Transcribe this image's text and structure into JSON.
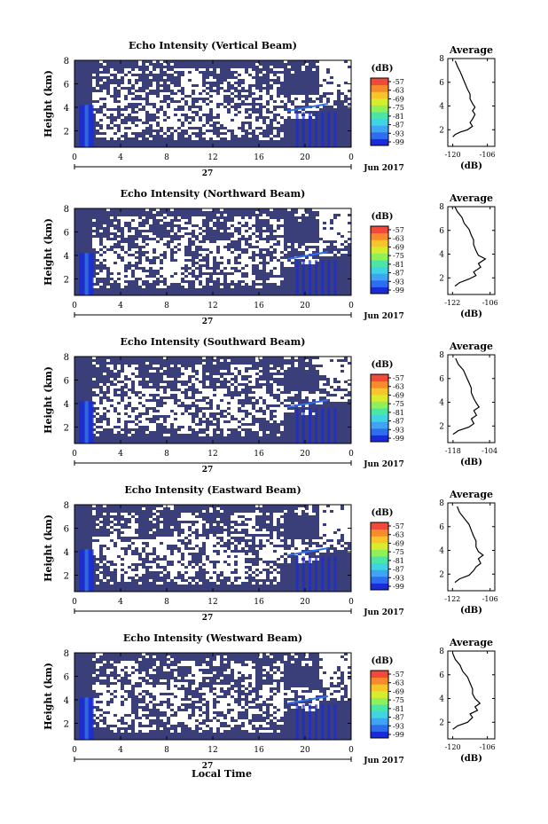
{
  "figure": {
    "xlabel_bottom": "Local Time",
    "colors": {
      "background": "#3a3f7a",
      "echo_gap": "#ffffff",
      "frame": "#000000",
      "colormap": [
        "#1a2bd9",
        "#2f6df0",
        "#3fa4f4",
        "#3fd4e2",
        "#4be6a5",
        "#8ff05a",
        "#d8ec2e",
        "#f7c52a",
        "#f78a2a",
        "#f04a3a"
      ]
    }
  },
  "chart_data": [
    {
      "type": "heatmap",
      "title": "Echo Intensity (Vertical Beam)",
      "ylabel": "Height (km)",
      "yticks": [
        "2",
        "4",
        "6",
        "8"
      ],
      "ylim": [
        0.6,
        8
      ],
      "xticks": [
        "0",
        "4",
        "8",
        "12",
        "16",
        "20",
        "0"
      ],
      "xlim": [
        0,
        24
      ],
      "date_label": "27",
      "month_label": "Jun 2017",
      "colorbar": {
        "unit": "(dB)",
        "ticks": [
          "-57",
          "-63",
          "-69",
          "-75",
          "-81",
          "-87",
          "-93",
          "-99"
        ]
      },
      "profile": {
        "title": "Average",
        "xlabel": "(dB)",
        "xticks": [
          "-120",
          "-106"
        ],
        "xlim": [
          -122,
          -103
        ],
        "yticks": [
          "2",
          "4",
          "6",
          "8"
        ],
        "ylim": [
          0.6,
          8
        ],
        "points": [
          [
            -120,
            1.4
          ],
          [
            -119,
            1.6
          ],
          [
            -117,
            1.8
          ],
          [
            -114,
            2.0
          ],
          [
            -112,
            2.3
          ],
          [
            -113,
            2.6
          ],
          [
            -112,
            2.9
          ],
          [
            -111,
            3.3
          ],
          [
            -112,
            3.6
          ],
          [
            -111,
            3.9
          ],
          [
            -112,
            4.2
          ],
          [
            -113,
            4.6
          ],
          [
            -113,
            5.0
          ],
          [
            -114,
            5.4
          ],
          [
            -115,
            5.9
          ],
          [
            -116,
            6.4
          ],
          [
            -117,
            6.9
          ],
          [
            -118,
            7.3
          ],
          [
            -119,
            7.8
          ]
        ]
      }
    },
    {
      "type": "heatmap",
      "title": "Echo Intensity (Northward Beam)",
      "ylabel": "Height (km)",
      "yticks": [
        "2",
        "4",
        "6",
        "8"
      ],
      "ylim": [
        0.6,
        8
      ],
      "xticks": [
        "0",
        "4",
        "8",
        "12",
        "16",
        "20",
        "0"
      ],
      "xlim": [
        0,
        24
      ],
      "date_label": "27",
      "month_label": "Jun 2017",
      "colorbar": {
        "unit": "(dB)",
        "ticks": [
          "-57",
          "-63",
          "-69",
          "-75",
          "-81",
          "-87",
          "-93",
          "-99"
        ]
      },
      "profile": {
        "title": "Average",
        "xlabel": "(dB)",
        "xticks": [
          "-122",
          "-106"
        ],
        "xlim": [
          -124,
          -104
        ],
        "yticks": [
          "2",
          "4",
          "6",
          "8"
        ],
        "ylim": [
          0.6,
          8
        ],
        "points": [
          [
            -121,
            1.3
          ],
          [
            -119,
            1.6
          ],
          [
            -115,
            1.9
          ],
          [
            -112,
            2.2
          ],
          [
            -113,
            2.5
          ],
          [
            -110,
            2.9
          ],
          [
            -111,
            3.2
          ],
          [
            -108,
            3.6
          ],
          [
            -111,
            3.9
          ],
          [
            -112,
            4.3
          ],
          [
            -113,
            4.8
          ],
          [
            -113,
            5.2
          ],
          [
            -114,
            5.6
          ],
          [
            -115,
            6.1
          ],
          [
            -117,
            6.6
          ],
          [
            -118,
            7.1
          ],
          [
            -120,
            7.6
          ],
          [
            -121,
            8.0
          ]
        ]
      }
    },
    {
      "type": "heatmap",
      "title": "Echo Intensity (Southward Beam)",
      "ylabel": "Height (km)",
      "yticks": [
        "2",
        "4",
        "6",
        "8"
      ],
      "ylim": [
        0.6,
        8
      ],
      "xticks": [
        "0",
        "4",
        "8",
        "12",
        "16",
        "20",
        "0"
      ],
      "xlim": [
        0,
        24
      ],
      "date_label": "27",
      "month_label": "Jun 2017",
      "colorbar": {
        "unit": "(dB)",
        "ticks": [
          "-57",
          "-63",
          "-69",
          "-75",
          "-81",
          "-87",
          "-93",
          "-99"
        ]
      },
      "profile": {
        "title": "Average",
        "xlabel": "(dB)",
        "xticks": [
          "-118",
          "-104"
        ],
        "xlim": [
          -120,
          -102
        ],
        "yticks": [
          "2",
          "4",
          "6",
          "8"
        ],
        "ylim": [
          0.6,
          8
        ],
        "points": [
          [
            -118,
            1.3
          ],
          [
            -116,
            1.6
          ],
          [
            -112,
            1.9
          ],
          [
            -110,
            2.2
          ],
          [
            -111,
            2.6
          ],
          [
            -109,
            2.9
          ],
          [
            -110,
            3.3
          ],
          [
            -108,
            3.6
          ],
          [
            -109,
            3.9
          ],
          [
            -110,
            4.3
          ],
          [
            -111,
            4.8
          ],
          [
            -111,
            5.2
          ],
          [
            -112,
            5.7
          ],
          [
            -113,
            6.2
          ],
          [
            -114,
            6.7
          ],
          [
            -116,
            7.2
          ],
          [
            -117,
            7.7
          ]
        ]
      }
    },
    {
      "type": "heatmap",
      "title": "Echo Intensity (Eastward Beam)",
      "ylabel": "Height (km)",
      "yticks": [
        "2",
        "4",
        "6",
        "8"
      ],
      "ylim": [
        0.6,
        8
      ],
      "xticks": [
        "0",
        "4",
        "8",
        "12",
        "16",
        "20",
        "0"
      ],
      "xlim": [
        0,
        24
      ],
      "date_label": "27",
      "month_label": "Jun 2017",
      "colorbar": {
        "unit": "(dB)",
        "ticks": [
          "-57",
          "-63",
          "-69",
          "-75",
          "-81",
          "-87",
          "-93",
          "-99"
        ]
      },
      "profile": {
        "title": "Average",
        "xlabel": "(dB)",
        "xticks": [
          "-122",
          "-106"
        ],
        "xlim": [
          -124,
          -104
        ],
        "yticks": [
          "2",
          "4",
          "6",
          "8"
        ],
        "ylim": [
          0.6,
          8
        ],
        "points": [
          [
            -121,
            1.3
          ],
          [
            -119,
            1.6
          ],
          [
            -115,
            1.9
          ],
          [
            -113,
            2.3
          ],
          [
            -112,
            2.6
          ],
          [
            -110,
            2.9
          ],
          [
            -111,
            3.3
          ],
          [
            -109,
            3.6
          ],
          [
            -111,
            3.9
          ],
          [
            -112,
            4.3
          ],
          [
            -112,
            4.8
          ],
          [
            -113,
            5.2
          ],
          [
            -114,
            5.7
          ],
          [
            -115,
            6.2
          ],
          [
            -117,
            6.7
          ],
          [
            -119,
            7.2
          ],
          [
            -120,
            7.7
          ]
        ]
      }
    },
    {
      "type": "heatmap",
      "title": "Echo Intensity (Westward Beam)",
      "ylabel": "Height (km)",
      "yticks": [
        "2",
        "4",
        "6",
        "8"
      ],
      "ylim": [
        0.6,
        8
      ],
      "xticks": [
        "0",
        "4",
        "8",
        "12",
        "16",
        "20",
        "0"
      ],
      "xlim": [
        0,
        24
      ],
      "date_label": "27",
      "month_label": "Jun 2017",
      "colorbar": {
        "unit": "(dB)",
        "ticks": [
          "-57",
          "-63",
          "-69",
          "-75",
          "-81",
          "-87",
          "-93",
          "-99"
        ]
      },
      "profile": {
        "title": "Average",
        "xlabel": "(dB)",
        "xticks": [
          "-120",
          "-106"
        ],
        "xlim": [
          -122,
          -103
        ],
        "yticks": [
          "2",
          "4",
          "6",
          "8"
        ],
        "ylim": [
          0.6,
          8
        ],
        "points": [
          [
            -120,
            1.4
          ],
          [
            -118,
            1.7
          ],
          [
            -114,
            2.0
          ],
          [
            -112,
            2.4
          ],
          [
            -113,
            2.7
          ],
          [
            -110,
            3.0
          ],
          [
            -111,
            3.3
          ],
          [
            -109,
            3.6
          ],
          [
            -111,
            4.0
          ],
          [
            -112,
            4.4
          ],
          [
            -112,
            4.8
          ],
          [
            -113,
            5.3
          ],
          [
            -114,
            5.8
          ],
          [
            -116,
            6.3
          ],
          [
            -117,
            6.8
          ],
          [
            -119,
            7.3
          ],
          [
            -120,
            7.8
          ]
        ]
      }
    }
  ]
}
